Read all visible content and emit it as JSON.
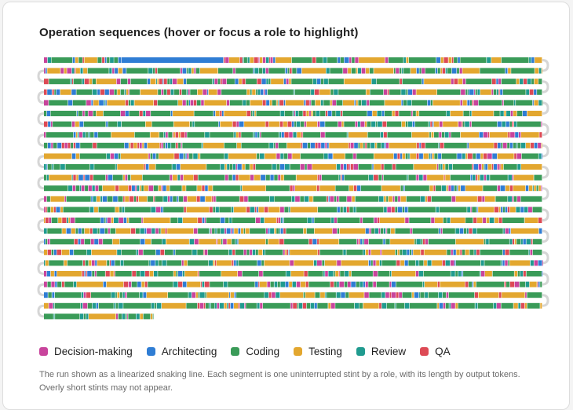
{
  "title": "Operation sequences (hover or focus a role to highlight)",
  "legend": [
    {
      "key": "decision",
      "label": "Decision-making",
      "color": "#c8449c"
    },
    {
      "key": "architect",
      "label": "Architecting",
      "color": "#2f7dd4"
    },
    {
      "key": "coding",
      "label": "Coding",
      "color": "#3a9b58"
    },
    {
      "key": "testing",
      "label": "Testing",
      "color": "#e3a72f"
    },
    {
      "key": "review",
      "label": "Review",
      "color": "#209b8f"
    },
    {
      "key": "qa",
      "label": "QA",
      "color": "#dd4a55"
    }
  ],
  "caption": "The run shown as a linearized snaking line. Each segment is one uninterrupted stint by a role, with its length by output tokens. Overly short stints may not appear.",
  "chart_data": {
    "type": "snake-sequence",
    "rows": 25,
    "row_pattern": "Predominantly Coding (green) and Testing (orange) stints, interleaved with many short Decision-making, Architecting, Review and QA stints; an early long Architecting run in the first row; last row partially filled",
    "last_row_fill_fraction": 0.22
  }
}
